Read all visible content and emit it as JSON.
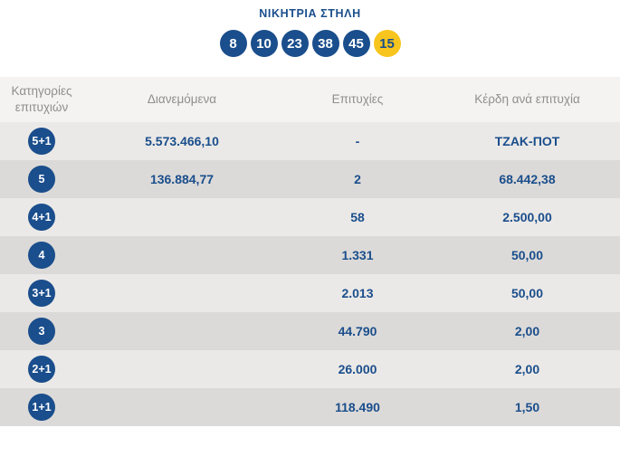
{
  "winning_column": {
    "title": "ΝΙΚΗΤΡΙΑ ΣΤΗΛΗ",
    "numbers": [
      "8",
      "10",
      "23",
      "38",
      "45"
    ],
    "joker": "15"
  },
  "table": {
    "headers": [
      "Κατηγορίες επιτυχιών",
      "Διανεμόμενα",
      "Επιτυχίες",
      "Κέρδη ανά επιτυχία"
    ],
    "rows": [
      {
        "category": "5+1",
        "distributed": "5.573.466,10",
        "winners": "-",
        "prize": "ΤΖΑΚ-ΠΟΤ"
      },
      {
        "category": "5",
        "distributed": "136.884,77",
        "winners": "2",
        "prize": "68.442,38"
      },
      {
        "category": "4+1",
        "distributed": "",
        "winners": "58",
        "prize": "2.500,00"
      },
      {
        "category": "4",
        "distributed": "",
        "winners": "1.331",
        "prize": "50,00"
      },
      {
        "category": "3+1",
        "distributed": "",
        "winners": "2.013",
        "prize": "50,00"
      },
      {
        "category": "3",
        "distributed": "",
        "winners": "44.790",
        "prize": "2,00"
      },
      {
        "category": "2+1",
        "distributed": "",
        "winners": "26.000",
        "prize": "2,00"
      },
      {
        "category": "1+1",
        "distributed": "",
        "winners": "118.490",
        "prize": "1,50"
      }
    ]
  },
  "colors": {
    "blue": "#1a4e8c",
    "yellow": "#f7c51e",
    "header_bg": "#f4f3f1",
    "header_text": "#908e8c",
    "row_light": "#ebe9e7",
    "row_dark": "#dcdad8"
  }
}
